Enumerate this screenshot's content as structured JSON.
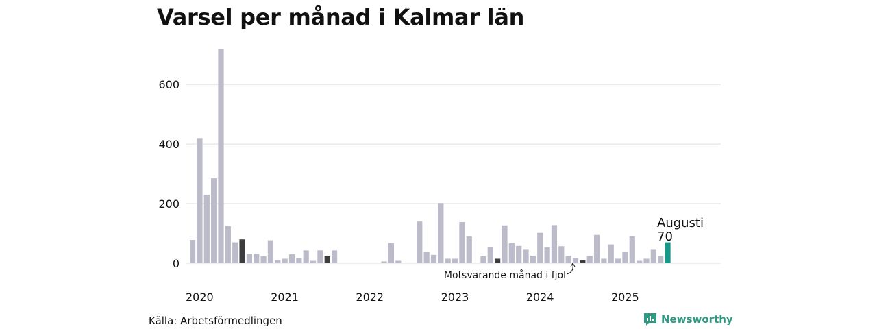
{
  "title": "Varsel per månad i Kalmar län",
  "source": "Källa: Arbetsförmedlingen",
  "brand": {
    "name": "Newsworthy",
    "icon": "newsworthy-logo-icon"
  },
  "colors": {
    "bar": "#bcbbc9",
    "highlight": "#3d3d3f",
    "current": "#17998a",
    "grid": "#dddddd",
    "brand": "#2f9a83"
  },
  "annotations": {
    "current_month": "Augusti",
    "current_value": "70",
    "previous_year": "Motsvarande månad i fjol"
  },
  "chart_data": {
    "type": "bar",
    "title": "Varsel per månad i Kalmar län",
    "xlabel": "",
    "ylabel": "",
    "ylim": [
      0,
      720
    ],
    "yticks": [
      0,
      200,
      400,
      600
    ],
    "xtick_labels": [
      "2020",
      "2021",
      "2022",
      "2023",
      "2024",
      "2025"
    ],
    "grid": true,
    "x": [
      "2020-01",
      "2020-02",
      "2020-03",
      "2020-04",
      "2020-05",
      "2020-06",
      "2020-07",
      "2020-08",
      "2020-09",
      "2020-10",
      "2020-11",
      "2020-12",
      "2021-01",
      "2021-02",
      "2021-03",
      "2021-04",
      "2021-05",
      "2021-06",
      "2021-07",
      "2021-08",
      "2021-09",
      "2021-10",
      "2021-11",
      "2021-12",
      "2022-01",
      "2022-02",
      "2022-03",
      "2022-04",
      "2022-05",
      "2022-06",
      "2022-07",
      "2022-08",
      "2022-09",
      "2022-10",
      "2022-11",
      "2022-12",
      "2023-01",
      "2023-02",
      "2023-03",
      "2023-04",
      "2023-05",
      "2023-06",
      "2023-07",
      "2023-08",
      "2023-09",
      "2023-10",
      "2023-11",
      "2023-12",
      "2024-01",
      "2024-02",
      "2024-03",
      "2024-04",
      "2024-05",
      "2024-06",
      "2024-07",
      "2024-08",
      "2024-09",
      "2024-10",
      "2024-11",
      "2024-12",
      "2025-01",
      "2025-02",
      "2025-03",
      "2025-04",
      "2025-05",
      "2025-06",
      "2025-07",
      "2025-08"
    ],
    "values": [
      78,
      418,
      230,
      285,
      718,
      125,
      70,
      80,
      32,
      32,
      23,
      77,
      10,
      15,
      30,
      18,
      43,
      8,
      43,
      23,
      43,
      0,
      0,
      0,
      0,
      0,
      0,
      6,
      68,
      8,
      0,
      0,
      140,
      37,
      28,
      202,
      15,
      15,
      138,
      90,
      0,
      23,
      55,
      15,
      127,
      67,
      58,
      45,
      25,
      102,
      53,
      128,
      57,
      25,
      18,
      10,
      25,
      95,
      15,
      63,
      15,
      37,
      90,
      8,
      15,
      45,
      25,
      70
    ],
    "highlight": [
      {
        "x": "2020-08",
        "role": "same month"
      },
      {
        "x": "2021-08",
        "role": "same month"
      },
      {
        "x": "2022-08",
        "role": "same month"
      },
      {
        "x": "2023-08",
        "role": "same month"
      },
      {
        "x": "2024-08",
        "role": "same month previous year"
      },
      {
        "x": "2025-08",
        "role": "current"
      }
    ]
  }
}
